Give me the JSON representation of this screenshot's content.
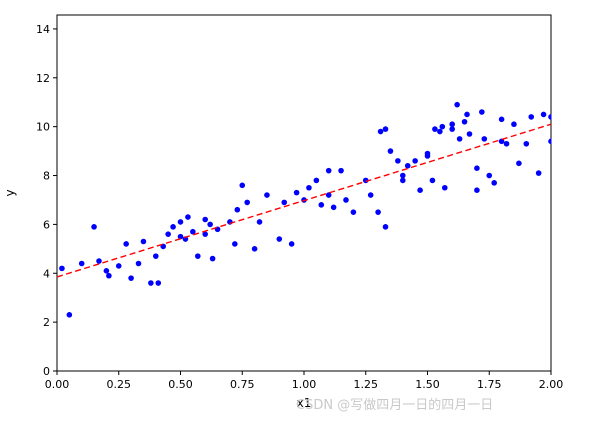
{
  "figure": {
    "background": "#ffffff"
  },
  "watermark": {
    "text": "CSDN @写做四月一日的四月一日",
    "color": "#c9c9c9"
  },
  "chart_data": {
    "type": "scatter",
    "title": "",
    "xlabel": "x1",
    "ylabel": "y",
    "xlim": [
      0,
      2.0
    ],
    "ylim": [
      0,
      14.57
    ],
    "grid": false,
    "legend": "none",
    "x_ticks": [
      [
        0,
        "0.00"
      ],
      [
        0.25,
        "0.25"
      ],
      [
        0.5,
        "0.50"
      ],
      [
        0.75,
        "0.75"
      ],
      [
        1.0,
        "1.00"
      ],
      [
        1.25,
        "1.25"
      ],
      [
        1.5,
        "1.50"
      ],
      [
        1.75,
        "1.75"
      ],
      [
        2.0,
        "2.00"
      ]
    ],
    "y_ticks": [
      [
        0,
        "0"
      ],
      [
        2,
        "2"
      ],
      [
        4,
        "4"
      ],
      [
        6,
        "6"
      ],
      [
        8,
        "8"
      ],
      [
        10,
        "10"
      ],
      [
        12,
        "12"
      ],
      [
        14,
        "14"
      ]
    ],
    "series": [
      {
        "name": "data-points",
        "type": "scatter",
        "color": "#0000ff",
        "marker_radius": 2.8,
        "points": [
          [
            0.02,
            4.2
          ],
          [
            0.05,
            2.3
          ],
          [
            0.1,
            4.4
          ],
          [
            0.15,
            5.9
          ],
          [
            0.17,
            4.5
          ],
          [
            0.2,
            4.1
          ],
          [
            0.21,
            3.9
          ],
          [
            0.25,
            4.3
          ],
          [
            0.28,
            5.2
          ],
          [
            0.3,
            3.8
          ],
          [
            0.33,
            4.4
          ],
          [
            0.35,
            5.3
          ],
          [
            0.38,
            3.6
          ],
          [
            0.4,
            4.7
          ],
          [
            0.41,
            3.6
          ],
          [
            0.43,
            5.1
          ],
          [
            0.45,
            5.6
          ],
          [
            0.47,
            5.9
          ],
          [
            0.5,
            5.5
          ],
          [
            0.5,
            6.1
          ],
          [
            0.52,
            5.4
          ],
          [
            0.53,
            6.3
          ],
          [
            0.55,
            5.7
          ],
          [
            0.57,
            4.7
          ],
          [
            0.6,
            6.2
          ],
          [
            0.6,
            5.6
          ],
          [
            0.62,
            6.0
          ],
          [
            0.63,
            4.6
          ],
          [
            0.65,
            5.8
          ],
          [
            0.7,
            6.1
          ],
          [
            0.72,
            5.2
          ],
          [
            0.73,
            6.6
          ],
          [
            0.75,
            7.6
          ],
          [
            0.77,
            6.9
          ],
          [
            0.8,
            5.0
          ],
          [
            0.82,
            6.1
          ],
          [
            0.85,
            7.2
          ],
          [
            0.9,
            5.4
          ],
          [
            0.92,
            6.9
          ],
          [
            0.95,
            5.2
          ],
          [
            0.97,
            7.3
          ],
          [
            1.0,
            7.0
          ],
          [
            1.02,
            7.5
          ],
          [
            1.05,
            7.8
          ],
          [
            1.07,
            6.8
          ],
          [
            1.1,
            8.2
          ],
          [
            1.1,
            7.2
          ],
          [
            1.12,
            6.7
          ],
          [
            1.15,
            8.2
          ],
          [
            1.17,
            7.0
          ],
          [
            1.2,
            6.5
          ],
          [
            1.25,
            7.8
          ],
          [
            1.27,
            7.2
          ],
          [
            1.3,
            6.5
          ],
          [
            1.31,
            9.8
          ],
          [
            1.33,
            9.9
          ],
          [
            1.33,
            5.9
          ],
          [
            1.35,
            9.0
          ],
          [
            1.38,
            8.6
          ],
          [
            1.4,
            7.8
          ],
          [
            1.4,
            8.0
          ],
          [
            1.42,
            8.4
          ],
          [
            1.45,
            8.6
          ],
          [
            1.47,
            7.4
          ],
          [
            1.5,
            8.8
          ],
          [
            1.5,
            8.9
          ],
          [
            1.52,
            7.8
          ],
          [
            1.53,
            9.9
          ],
          [
            1.55,
            9.8
          ],
          [
            1.56,
            10.0
          ],
          [
            1.57,
            7.5
          ],
          [
            1.6,
            9.9
          ],
          [
            1.6,
            10.1
          ],
          [
            1.62,
            10.9
          ],
          [
            1.63,
            9.5
          ],
          [
            1.65,
            10.2
          ],
          [
            1.66,
            10.5
          ],
          [
            1.67,
            9.7
          ],
          [
            1.7,
            7.4
          ],
          [
            1.7,
            8.3
          ],
          [
            1.72,
            10.6
          ],
          [
            1.73,
            9.5
          ],
          [
            1.75,
            8.0
          ],
          [
            1.77,
            7.7
          ],
          [
            1.8,
            9.4
          ],
          [
            1.8,
            10.3
          ],
          [
            1.82,
            9.3
          ],
          [
            1.85,
            10.1
          ],
          [
            1.87,
            8.5
          ],
          [
            1.9,
            9.3
          ],
          [
            1.92,
            10.4
          ],
          [
            1.95,
            8.1
          ],
          [
            1.97,
            10.5
          ],
          [
            2.0,
            10.4
          ],
          [
            2.0,
            9.4
          ]
        ]
      },
      {
        "name": "regression-line",
        "type": "line",
        "style": "dashed",
        "color": "#ff0000",
        "points": [
          [
            0,
            3.85
          ],
          [
            2.0,
            10.1
          ]
        ]
      }
    ]
  }
}
